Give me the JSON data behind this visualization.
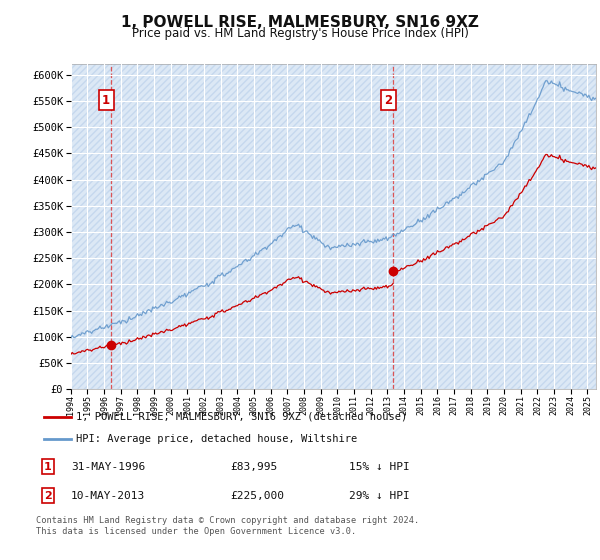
{
  "title": "1, POWELL RISE, MALMESBURY, SN16 9XZ",
  "subtitle": "Price paid vs. HM Land Registry's House Price Index (HPI)",
  "legend_label_red": "1, POWELL RISE, MALMESBURY, SN16 9XZ (detached house)",
  "legend_label_blue": "HPI: Average price, detached house, Wiltshire",
  "sale1_date": "31-MAY-1996",
  "sale1_price": "£83,995",
  "sale1_hpi": "15% ↓ HPI",
  "sale1_year": 1996.42,
  "sale1_value": 83995,
  "sale2_date": "10-MAY-2013",
  "sale2_price": "£225,000",
  "sale2_hpi": "29% ↓ HPI",
  "sale2_year": 2013.36,
  "sale2_value": 225000,
  "ylim_min": 0,
  "ylim_max": 620000,
  "yticks": [
    0,
    50000,
    100000,
    150000,
    200000,
    250000,
    300000,
    350000,
    400000,
    450000,
    500000,
    550000,
    600000
  ],
  "xlim_min": 1994,
  "xlim_max": 2025.5,
  "background_color": "#dce8f5",
  "grid_color": "#ffffff",
  "red_line_color": "#cc0000",
  "blue_line_color": "#6699cc",
  "dashed_red": "#dd4444",
  "footnote": "Contains HM Land Registry data © Crown copyright and database right 2024.\nThis data is licensed under the Open Government Licence v3.0."
}
